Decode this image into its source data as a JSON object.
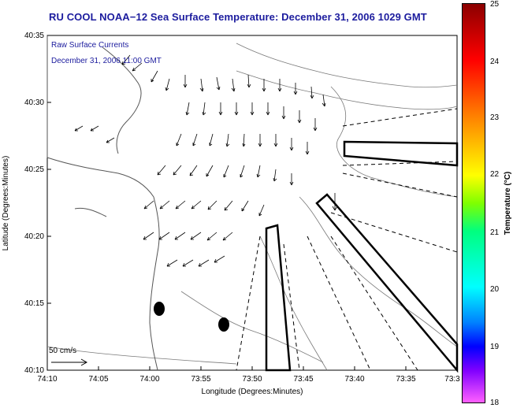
{
  "title": "RU COOL  NOAA−12  Sea Surface Temperature:  December 31, 2006 1029 GMT",
  "legend": {
    "line1": "Raw Surface Currents",
    "line2": "December 31, 2006 11:00 GMT",
    "scale_label": "50 cm/s"
  },
  "axes": {
    "xlabel": "Longitude (Degrees:Minutes)",
    "ylabel": "Latitude (Degrees:Minutes)",
    "x_ticks": [
      "74:10",
      "74:05",
      "74:00",
      "73:55",
      "73:50",
      "73:45",
      "73:40",
      "73:35",
      "73:3"
    ],
    "y_ticks": [
      "40:35",
      "40:30",
      "40:25",
      "40:20",
      "40:15",
      "40:10"
    ]
  },
  "colorbar": {
    "label": "Temperature (°C)",
    "ticks": [
      "25",
      "24",
      "23",
      "22",
      "21",
      "20",
      "19",
      "18"
    ],
    "range": [
      18,
      25
    ]
  }
}
